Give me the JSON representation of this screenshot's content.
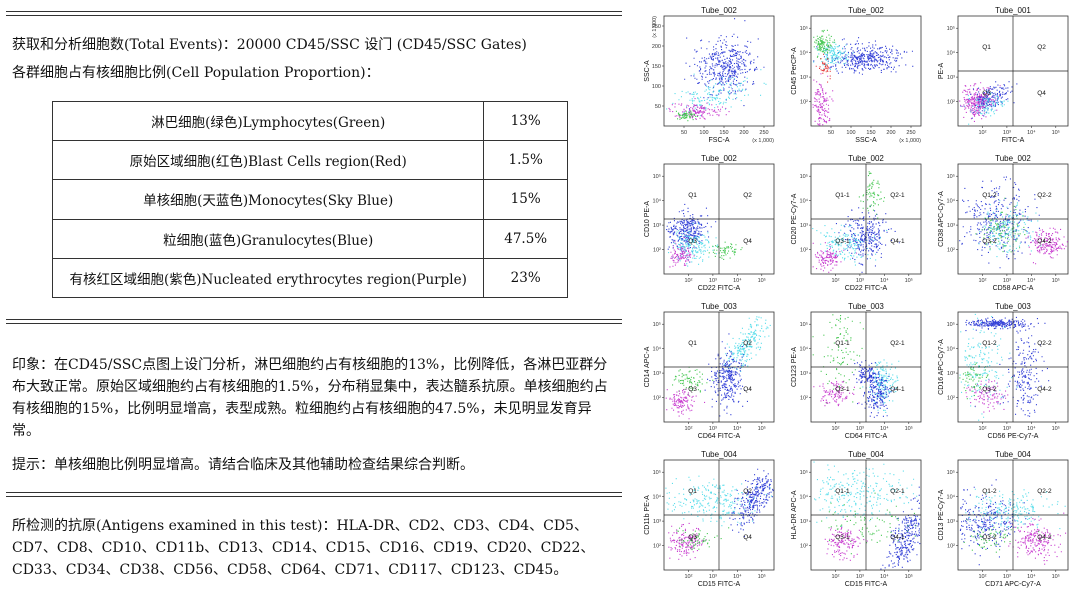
{
  "report": {
    "summary_line1": "获取和分析细胞数(Total Events)：20000   CD45/SSC 设门 (CD45/SSC Gates)",
    "summary_line2": "各群细胞占有核细胞比例(Cell Population Proportion)：",
    "population_table": [
      {
        "name": "淋巴细胞(绿色)Lymphocytes(Green)",
        "percent": "13%"
      },
      {
        "name": "原始区域细胞(红色)Blast Cells region(Red)",
        "percent": "1.5%"
      },
      {
        "name": "单核细胞(天蓝色)Monocytes(Sky Blue)",
        "percent": "15%"
      },
      {
        "name": "粒细胞(蓝色)Granulocytes(Blue)",
        "percent": "47.5%"
      },
      {
        "name": "有核红区域细胞(紫色)Nucleated erythrocytes region(Purple)",
        "percent": "23%"
      }
    ],
    "impression": "印象：在CD45/SSC点图上设门分析，淋巴细胞约占有核细胞的13%，比例降低，各淋巴亚群分布大致正常。原始区域细胞约占有核细胞的1.5%，分布稍显集中，表达髓系抗原。单核细胞约占有核细胞的15%，比例明显增高，表型成熟。粒细胞约占有核细胞的47.5%，未见明显发育异常。",
    "hint": "提示：单核细胞比例明显增高。请结合临床及其他辅助检查结果综合判断。",
    "antigens": "所检测的抗原(Antigens examined in this test)：HLA-DR、CD2、CD3、CD4、CD5、CD7、CD8、CD10、CD11b、CD13、CD14、CD15、CD16、CD19、CD20、CD22、CD33、CD34、CD38、CD56、CD58、CD64、CD71、CD117、CD123、CD45。"
  },
  "plots": [
    {
      "title": "Tube_002",
      "xlabel": "FSC-A",
      "ylabel": "SSC-A",
      "scale": "linear",
      "xticks": [
        "50",
        "100",
        "150",
        "200",
        "250"
      ],
      "yticks": [
        "50",
        "100",
        "150",
        "200",
        "250"
      ],
      "xunit": "(x 1,000)",
      "yunit": "(x 1,000)",
      "quadrants": null,
      "quadrant_labels": []
    },
    {
      "title": "Tube_002",
      "xlabel": "SSC-A",
      "ylabel": "CD45 PerCP-A",
      "scale": "linear-log",
      "xticks": [
        "50",
        "100",
        "150",
        "200",
        "250"
      ],
      "yticks": [
        "10²",
        "10³",
        "10⁴",
        "10⁵"
      ],
      "xunit": "(x 1,000)",
      "yunit": "",
      "quadrants": null,
      "quadrant_labels": []
    },
    {
      "title": "Tube_001",
      "xlabel": "FITC-A",
      "ylabel": "PE-A",
      "scale": "log",
      "xticks": [
        "10²",
        "10³",
        "10⁴",
        "10⁵"
      ],
      "yticks": [
        "10²",
        "10³",
        "10⁴",
        "10⁵"
      ],
      "xunit": "",
      "yunit": "",
      "quadrants": true,
      "quadrant_labels": [
        "Q1",
        "Q2",
        "Q3",
        "Q4"
      ]
    },
    {
      "title": "Tube_002",
      "xlabel": "CD22 FITC-A",
      "ylabel": "CD10 PE-A",
      "scale": "log",
      "xticks": [
        "10²",
        "10³",
        "10⁴",
        "10⁵"
      ],
      "yticks": [
        "10²",
        "10³",
        "10⁴",
        "10⁵"
      ],
      "xunit": "",
      "yunit": "",
      "quadrants": true,
      "quadrant_labels": [
        "Q1",
        "Q2",
        "Q3",
        "Q4"
      ]
    },
    {
      "title": "Tube_002",
      "xlabel": "CD22 FITC-A",
      "ylabel": "CD20 PE-Cy7-A",
      "scale": "log",
      "xticks": [
        "10²",
        "10³",
        "10⁴",
        "10⁵"
      ],
      "yticks": [
        "10²",
        "10³",
        "10⁴",
        "10⁵"
      ],
      "xunit": "",
      "yunit": "",
      "quadrants": true,
      "quadrant_labels": [
        "Q1-1",
        "Q2-1",
        "Q3-1",
        "Q4-1"
      ]
    },
    {
      "title": "Tube_002",
      "xlabel": "CD58 APC-A",
      "ylabel": "CD38 APC-Cy7-A",
      "scale": "log",
      "xticks": [
        "10²",
        "10³",
        "10⁴",
        "10⁵"
      ],
      "yticks": [
        "10²",
        "10³",
        "10⁴",
        "10⁵"
      ],
      "xunit": "",
      "yunit": "",
      "quadrants": true,
      "quadrant_labels": [
        "Q1-2",
        "Q2-2",
        "Q3-2",
        "Q4-2"
      ]
    },
    {
      "title": "Tube_003",
      "xlabel": "CD64 FITC-A",
      "ylabel": "CD14 APC-A",
      "scale": "log",
      "xticks": [
        "10²",
        "10³",
        "10⁴",
        "10⁵"
      ],
      "yticks": [
        "10²",
        "10³",
        "10⁴",
        "10⁵"
      ],
      "xunit": "",
      "yunit": "",
      "quadrants": true,
      "quadrant_labels": [
        "Q1",
        "Q2",
        "Q3",
        "Q4"
      ]
    },
    {
      "title": "Tube_003",
      "xlabel": "CD64 FITC-A",
      "ylabel": "CD123 PE-A",
      "scale": "log",
      "xticks": [
        "10²",
        "10³",
        "10⁴",
        "10⁵"
      ],
      "yticks": [
        "10²",
        "10³",
        "10⁴",
        "10⁵"
      ],
      "xunit": "",
      "yunit": "",
      "quadrants": true,
      "quadrant_labels": [
        "Q1-1",
        "Q2-1",
        "Q3-1",
        "Q4-1"
      ]
    },
    {
      "title": "Tube_003",
      "xlabel": "CD56 PE-Cy7-A",
      "ylabel": "CD16 APC-Cy7-A",
      "scale": "log",
      "xticks": [
        "10²",
        "10³",
        "10⁴",
        "10⁵"
      ],
      "yticks": [
        "10²",
        "10³",
        "10⁴",
        "10⁵"
      ],
      "xunit": "",
      "yunit": "",
      "quadrants": true,
      "quadrant_labels": [
        "Q1-2",
        "Q2-2",
        "Q3-2",
        "Q4-2"
      ]
    },
    {
      "title": "Tube_004",
      "xlabel": "CD15 FITC-A",
      "ylabel": "CD11b PE-A",
      "scale": "log",
      "xticks": [
        "10²",
        "10³",
        "10⁴",
        "10⁵"
      ],
      "yticks": [
        "10²",
        "10³",
        "10⁴",
        "10⁵"
      ],
      "xunit": "",
      "yunit": "",
      "quadrants": true,
      "quadrant_labels": [
        "Q1",
        "Q2",
        "Q3",
        "Q4"
      ]
    },
    {
      "title": "Tube_004",
      "xlabel": "CD15 FITC-A",
      "ylabel": "HLA-DR APC-A",
      "scale": "log",
      "xticks": [
        "10²",
        "10³",
        "10⁴",
        "10⁵"
      ],
      "yticks": [
        "10²",
        "10³",
        "10⁴",
        "10⁵"
      ],
      "xunit": "",
      "yunit": "",
      "quadrants": true,
      "quadrant_labels": [
        "Q1-1",
        "Q2-1",
        "Q3-1",
        "Q4-1"
      ]
    },
    {
      "title": "Tube_004",
      "xlabel": "CD71 APC-Cy7-A",
      "ylabel": "CD13 PE-Cy7-A",
      "scale": "log",
      "xticks": [
        "10²",
        "10³",
        "10⁴",
        "10⁵"
      ],
      "yticks": [
        "10²",
        "10³",
        "10⁴",
        "10⁵"
      ],
      "xunit": "",
      "yunit": "",
      "quadrants": true,
      "quadrant_labels": [
        "Q1-2",
        "Q2-2",
        "Q3-2",
        "Q4-2"
      ]
    }
  ],
  "colors": {
    "lymphocytes": "#2bbf3a",
    "blasts": "#e02020",
    "monocytes": "#40d8e8",
    "granulocytes": "#1020d0",
    "erythrocytes": "#c020c8",
    "text": "#111111",
    "rule": "#333333"
  }
}
